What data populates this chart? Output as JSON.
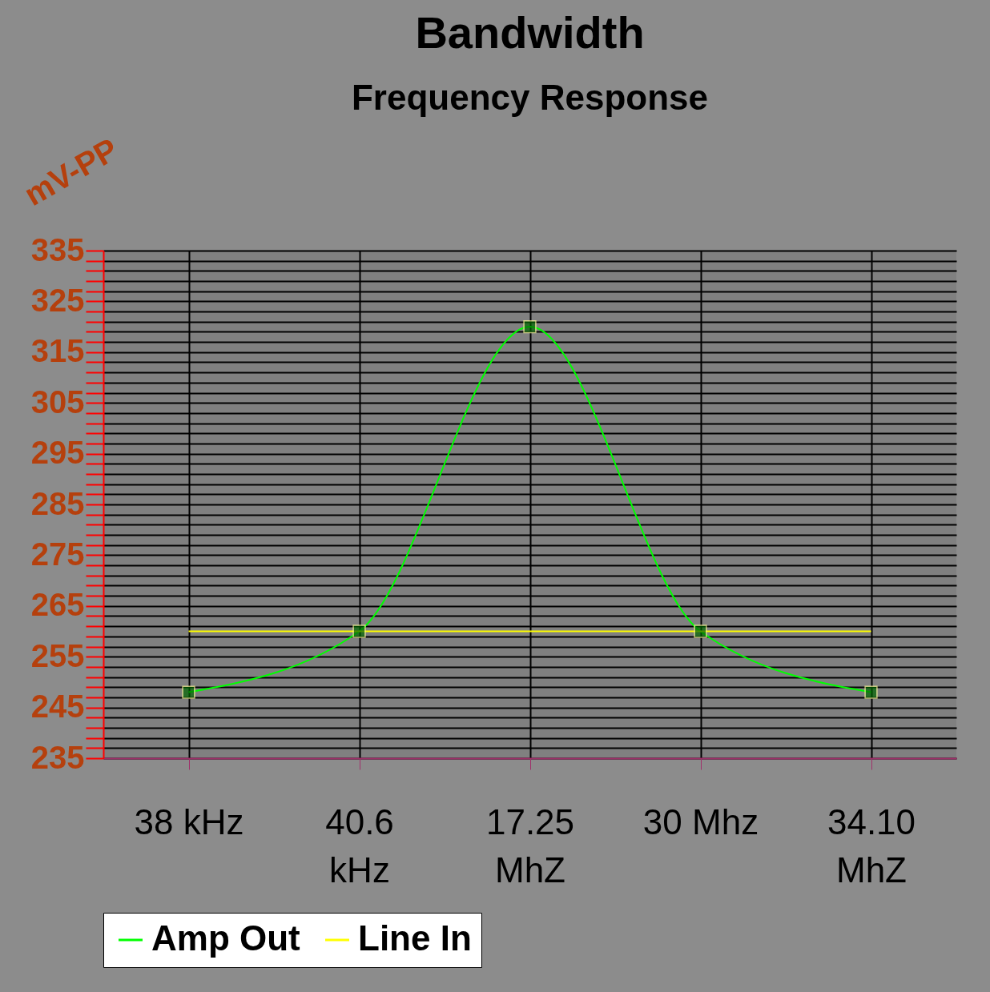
{
  "chart_data": {
    "type": "line",
    "title": "Bandwidth",
    "subtitle": "Frequency Response",
    "ylabel": "mV-PP",
    "categories": [
      "38 kHz",
      "40.6 kHz",
      "17.25 MhZ",
      "30 Mhz",
      "34.10 MhZ"
    ],
    "series": [
      {
        "name": "Amp Out",
        "color": "#00ff00",
        "values": [
          248,
          260,
          320,
          260,
          248
        ],
        "marker": "square"
      },
      {
        "name": "Line In",
        "color": "#ffff00",
        "values": [
          260,
          260,
          260,
          260,
          260
        ],
        "marker": "none"
      }
    ],
    "ylim": [
      235,
      335
    ],
    "yticks": [
      235,
      {
        "value": 237,
        "label": null
      },
      {
        "value": 239,
        "label": null
      },
      {
        "value": 241,
        "label": null
      },
      {
        "value": 243,
        "label": null
      },
      245,
      {
        "value": 247,
        "label": null
      },
      {
        "value": 249,
        "label": null
      },
      {
        "value": 251,
        "label": null
      },
      {
        "value": 253,
        "label": null
      },
      255,
      {
        "value": 257,
        "label": null
      },
      {
        "value": 259,
        "label": null
      },
      {
        "value": 261,
        "label": null
      },
      {
        "value": 263,
        "label": null
      },
      265,
      {
        "value": 267,
        "label": null
      },
      {
        "value": 269,
        "label": null
      },
      {
        "value": 271,
        "label": null
      },
      {
        "value": 273,
        "label": null
      },
      275,
      {
        "value": 277,
        "label": null
      },
      {
        "value": 279,
        "label": null
      },
      {
        "value": 281,
        "label": null
      },
      {
        "value": 283,
        "label": null
      },
      285,
      {
        "value": 287,
        "label": null
      },
      {
        "value": 289,
        "label": null
      },
      {
        "value": 291,
        "label": null
      },
      {
        "value": 293,
        "label": null
      },
      295,
      {
        "value": 297,
        "label": null
      },
      {
        "value": 299,
        "label": null
      },
      {
        "value": 301,
        "label": null
      },
      {
        "value": 303,
        "label": null
      },
      305,
      {
        "value": 307,
        "label": null
      },
      {
        "value": 309,
        "label": null
      },
      {
        "value": 311,
        "label": null
      },
      {
        "value": 313,
        "label": null
      },
      315,
      {
        "value": 317,
        "label": null
      },
      {
        "value": 319,
        "label": null
      },
      {
        "value": 321,
        "label": null
      },
      {
        "value": 323,
        "label": null
      },
      325,
      {
        "value": 327,
        "label": null
      },
      {
        "value": 329,
        "label": null
      },
      {
        "value": 331,
        "label": null
      },
      {
        "value": 333,
        "label": null
      },
      335
    ],
    "grid": true,
    "legend": "bottom",
    "line_style": "solid"
  }
}
